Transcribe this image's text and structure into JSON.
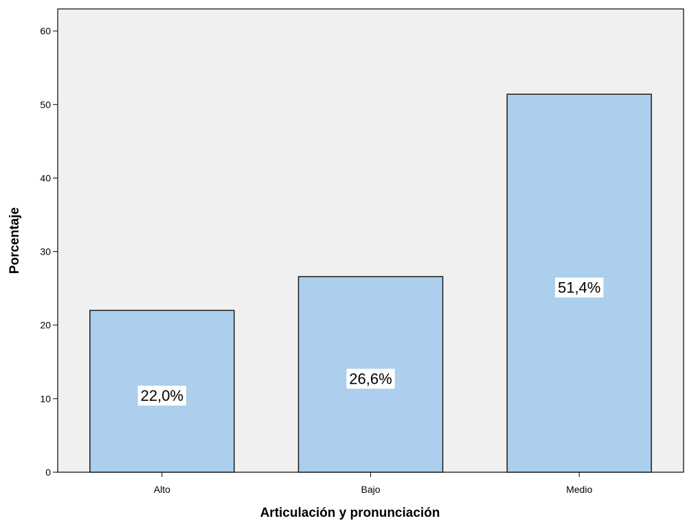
{
  "chart_data": {
    "type": "bar",
    "categories": [
      "Alto",
      "Bajo",
      "Medio"
    ],
    "values": [
      22.0,
      26.6,
      51.4
    ],
    "data_labels": [
      "22,0%",
      "26,6%",
      "51,4%"
    ],
    "xlabel": "Articulación y pronunciación",
    "ylabel": "Porcentaje",
    "ylim": [
      0,
      63
    ],
    "yticks": [
      0,
      10,
      20,
      30,
      40,
      50,
      60
    ],
    "grid": false,
    "colors": {
      "plot_background": "#f0f0f0",
      "bar_fill": "#abcfec",
      "bar_stroke": "#1a1a1a"
    }
  }
}
